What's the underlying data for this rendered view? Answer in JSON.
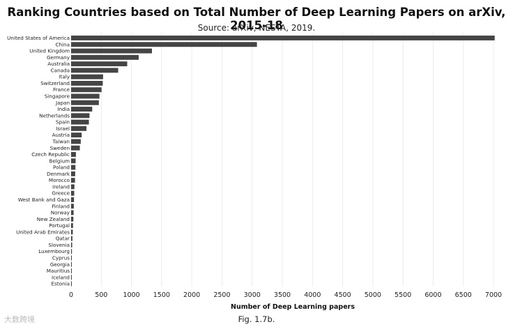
{
  "title": "Ranking Countries based on Total Number of Deep Learning Papers on arXiv, 2015-18",
  "subtitle": "Source: arXiv, NESTA, 2019.",
  "caption": "Fig. 1.7b.",
  "watermark": "大数跨境",
  "colors": {
    "bar": "#454545",
    "grid": "#ececec",
    "text": "#222222"
  },
  "chart_data": {
    "type": "bar",
    "orientation": "horizontal",
    "title": "Ranking Countries based on Total Number of Deep Learning Papers on arXiv, 2015-18",
    "subtitle": "Source: arXiv, NESTA, 2019.",
    "xlabel": "Number of Deep Learning papers",
    "ylabel": "",
    "xlim": [
      0,
      7000
    ],
    "xticks": [
      0,
      500,
      1000,
      1500,
      2000,
      2500,
      3000,
      3500,
      4000,
      4500,
      5000,
      5500,
      6000,
      6500,
      7000
    ],
    "grid": "vertical",
    "categories": [
      "United States of America",
      "China",
      "United Kingdom",
      "Germany",
      "Australia",
      "Canada",
      "Italy",
      "Switzerland",
      "France",
      "Singapore",
      "Japan",
      "India",
      "Netherlands",
      "Spain",
      "Israel",
      "Austria",
      "Taiwan",
      "Sweden",
      "Czech Republic",
      "Belgium",
      "Poland",
      "Denmark",
      "Morocco",
      "Ireland",
      "Greece",
      "West Bank and Gaza",
      "Finland",
      "Norway",
      "New Zealand",
      "Portugal",
      "United Arab Emirates",
      "Qatar",
      "Slovenia",
      "Luxembourg",
      "Cyprus",
      "Georgia",
      "Mauritius",
      "Iceland",
      "Estonia"
    ],
    "values": [
      7020,
      3080,
      1340,
      1120,
      930,
      780,
      530,
      525,
      505,
      470,
      460,
      350,
      305,
      295,
      255,
      175,
      160,
      145,
      80,
      75,
      72,
      68,
      65,
      55,
      52,
      48,
      45,
      42,
      38,
      32,
      28,
      22,
      18,
      14,
      12,
      10,
      8,
      6,
      5
    ]
  }
}
